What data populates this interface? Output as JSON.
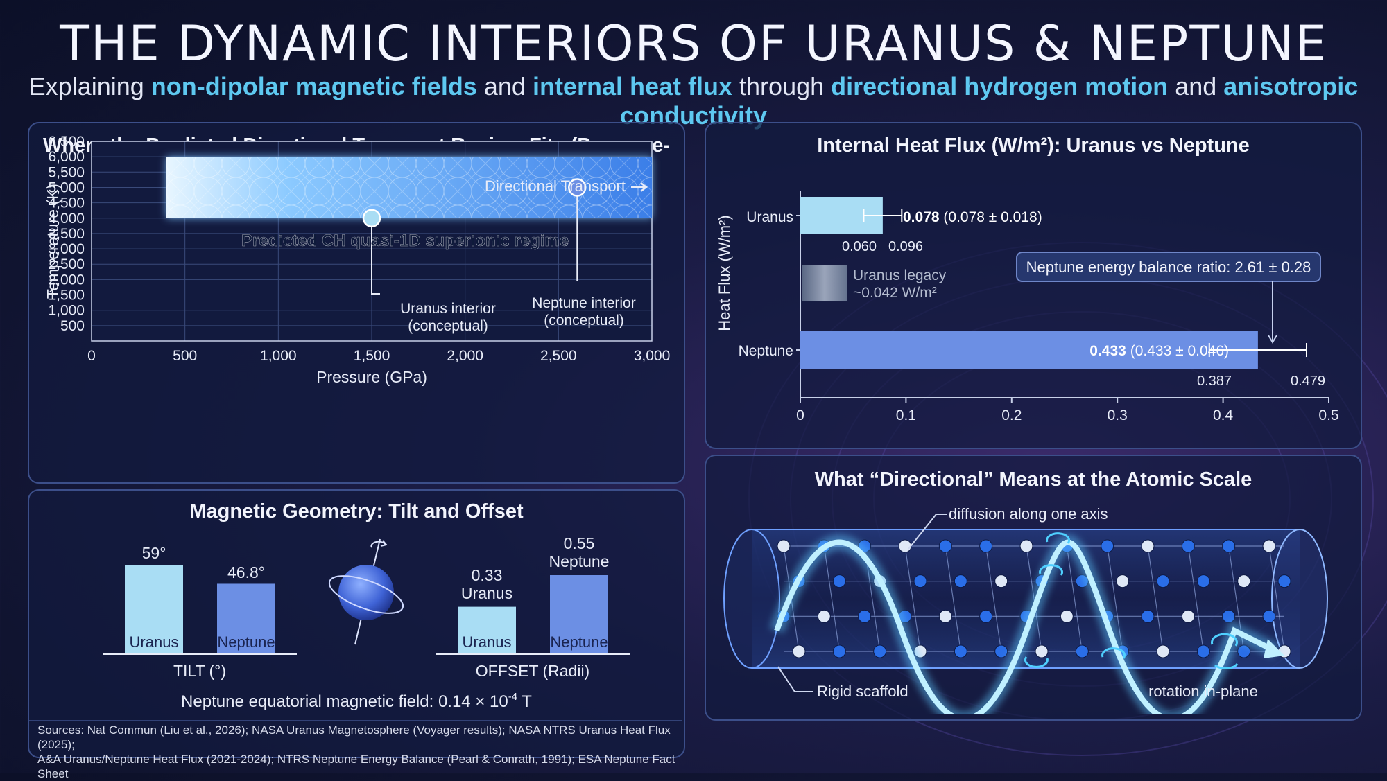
{
  "header": {
    "title": "THE DYNAMIC INTERIORS OF URANUS & NEPTUNE",
    "sub_explaining": "Explaining",
    "sub_hl1": "non-dipolar magnetic fields",
    "sub_and1": "and",
    "sub_hl2": "internal heat flux",
    "sub_through": "through",
    "sub_hl3": "directional hydrogen motion",
    "sub_and2": "and",
    "sub_hl4": "anisotropic conductivity"
  },
  "colors": {
    "uranus": "#a9ddf4",
    "neptune": "#6c8fe4",
    "accent": "#5ec8f0",
    "regime": "#6fb8ff"
  },
  "pt_chart": {
    "title": "Where the Predicted Directional Transport Regime Fits (Pressure-Temperature)",
    "directional_label": "Directional Transport",
    "regime_label": "Predicted CH quasi-1D superionic regime",
    "uranus_label_1": "Uranus interior",
    "uranus_label_2": "(conceptual)",
    "neptune_label_1": "Neptune interior",
    "neptune_label_2": "(conceptual)"
  },
  "heat_chart": {
    "title": "Internal Heat Flux (W/m²): Uranus vs Neptune",
    "uranus_value": "0.078",
    "uranus_detail": "(0.078 ± 0.018)",
    "uranus_lo": "0.060",
    "uranus_hi": "0.096",
    "legacy_1": "Uranus legacy",
    "legacy_2": "~0.042 W/m²",
    "ratio_label": "Neptune energy balance ratio: 2.61 ± 0.28",
    "neptune_value": "0.433",
    "neptune_detail": "(0.433 ± 0.046)",
    "neptune_lo": "0.387",
    "neptune_hi": "0.479"
  },
  "mag_panel": {
    "title": "Magnetic Geometry: Tilt and Offset",
    "tilt_caption": "TILT (°)",
    "offset_caption": "OFFSET (Radii)",
    "tilt_uranus_label": "59°",
    "tilt_neptune_label": "46.8°",
    "offset_uranus_value": "0.33",
    "offset_uranus_name": "Uranus",
    "offset_neptune_value": "0.55",
    "offset_neptune_name": "Neptune",
    "bar_uranus": "Uranus",
    "bar_neptune": "Neptune",
    "field_note_a": "Neptune equatorial magnetic field: 0.14 × 10",
    "field_note_exp": "-4",
    "field_note_b": " T"
  },
  "atomic_panel": {
    "title": "What “Directional” Means at the Atomic Scale",
    "diffusion_label": "diffusion along one axis",
    "scaffold_label": "Rigid scaffold",
    "rotation_label": "rotation in-plane"
  },
  "sources": {
    "line1": "Sources: Nat Commun (Liu et al., 2026); NASA Uranus Magnetosphere (Voyager results); NASA NTRS Uranus Heat Flux (2025);",
    "line2": "A&A Uranus/Neptune Heat Flux (2021-2024); NTRS Neptune Energy Balance (Pearl & Conrath, 1991); ESA Neptune Fact Sheet"
  },
  "chart_data": [
    {
      "type": "area",
      "title": "Where the Predicted Directional Transport Regime Fits (Pressure-Temperature)",
      "xlabel": "Pressure (GPa)",
      "ylabel": "Temperature (K)",
      "xlim": [
        0,
        3000
      ],
      "ylim": [
        0,
        6500
      ],
      "xticks": [
        0,
        500,
        1000,
        1500,
        2000,
        2500,
        3000
      ],
      "xtick_labels": [
        "0",
        "500",
        "1,000",
        "1,500",
        "2,000",
        "2,500",
        "3,000"
      ],
      "yticks": [
        500,
        1000,
        1500,
        2000,
        2500,
        3000,
        3500,
        4000,
        4500,
        5000,
        5500,
        6000,
        6500
      ],
      "ytick_labels": [
        "500",
        "1,000",
        "1,500",
        "2,000",
        "2,500",
        "3,000",
        "3,500",
        "4,000",
        "4,500",
        "5,000",
        "5,500",
        "6,000",
        "6,500"
      ],
      "regime": {
        "name": "Predicted CH quasi-1D superionic regime",
        "p_min": 400,
        "p_max": 3000,
        "t_min": 4000,
        "t_max": 6000
      },
      "points": [
        {
          "name": "Uranus interior",
          "p": 1500,
          "t": 4000
        },
        {
          "name": "Neptune interior",
          "p": 2600,
          "t": 5000
        }
      ],
      "grid": true
    },
    {
      "type": "bar",
      "orientation": "horizontal",
      "title": "Internal Heat Flux (W/m²): Uranus vs Neptune",
      "ylabel": "Heat Flux (W/m²)",
      "categories": [
        "Uranus",
        "Neptune"
      ],
      "values": [
        0.078,
        0.433
      ],
      "error_low": [
        0.06,
        0.387
      ],
      "error_high": [
        0.096,
        0.479
      ],
      "reference": {
        "name": "Uranus legacy",
        "value": 0.042
      },
      "xlim": [
        0,
        0.5
      ],
      "xticks": [
        0,
        0.1,
        0.2,
        0.3,
        0.4,
        0.5
      ],
      "xtick_labels": [
        "0",
        "0.1",
        "0.2",
        "0.3",
        "0.4",
        "0.5"
      ]
    },
    {
      "type": "bar",
      "title": "",
      "xlabel": "TILT (°)",
      "categories": [
        "Uranus",
        "Neptune"
      ],
      "values": [
        59,
        46.8
      ]
    },
    {
      "type": "bar",
      "title": "",
      "xlabel": "OFFSET (Radii)",
      "categories": [
        "Uranus",
        "Neptune"
      ],
      "values": [
        0.33,
        0.55
      ]
    }
  ]
}
